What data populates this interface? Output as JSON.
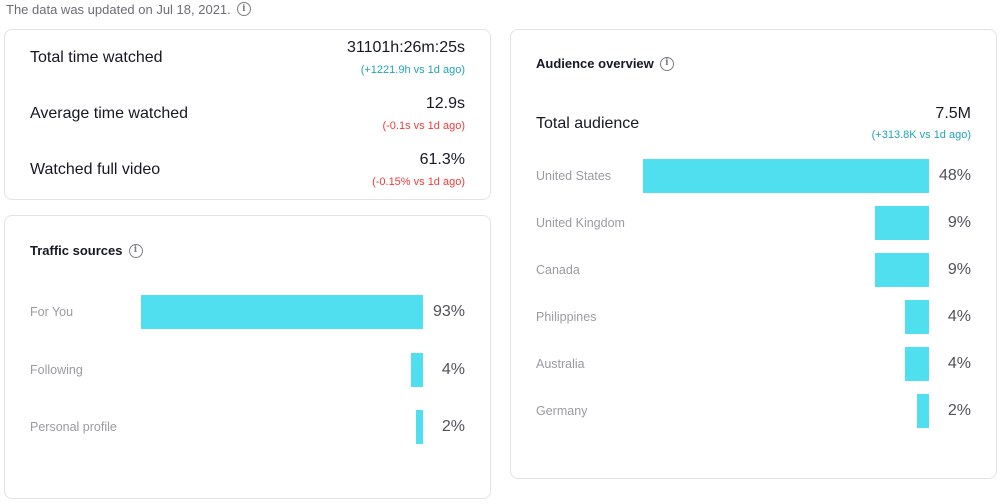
{
  "update_notice": "The data was updated on Jul 18, 2021.",
  "summary": {
    "metrics": [
      {
        "label": "Total time watched",
        "value": "31101h:26m:25s",
        "delta": "(+1221.9h vs 1d ago)",
        "trend": "up"
      },
      {
        "label": "Average time watched",
        "value": "12.9s",
        "delta": "(-0.1s vs 1d ago)",
        "trend": "down"
      },
      {
        "label": "Watched full video",
        "value": "61.3%",
        "delta": "(-0.15% vs 1d ago)",
        "trend": "down"
      }
    ]
  },
  "traffic": {
    "title": "Traffic sources",
    "items": [
      {
        "label": "For You",
        "percent": 93,
        "display": "93%"
      },
      {
        "label": "Following",
        "percent": 4,
        "display": "4%"
      },
      {
        "label": "Personal profile",
        "percent": 2,
        "display": "2%"
      }
    ]
  },
  "audience": {
    "title": "Audience overview",
    "total_label": "Total audience",
    "total_value": "7.5M",
    "total_delta": "(+313.8K vs 1d ago)",
    "countries": [
      {
        "label": "United States",
        "percent": 48,
        "display": "48%"
      },
      {
        "label": "United Kingdom",
        "percent": 9,
        "display": "9%"
      },
      {
        "label": "Canada",
        "percent": 9,
        "display": "9%"
      },
      {
        "label": "Philippines",
        "percent": 4,
        "display": "4%"
      },
      {
        "label": "Australia",
        "percent": 4,
        "display": "4%"
      },
      {
        "label": "Germany",
        "percent": 2,
        "display": "2%"
      }
    ]
  },
  "colors": {
    "bar": "#4fdfef",
    "delta_up": "#20a4b8",
    "delta_down": "#ee3b3b"
  },
  "icons": {
    "info": "info-circle-icon"
  }
}
